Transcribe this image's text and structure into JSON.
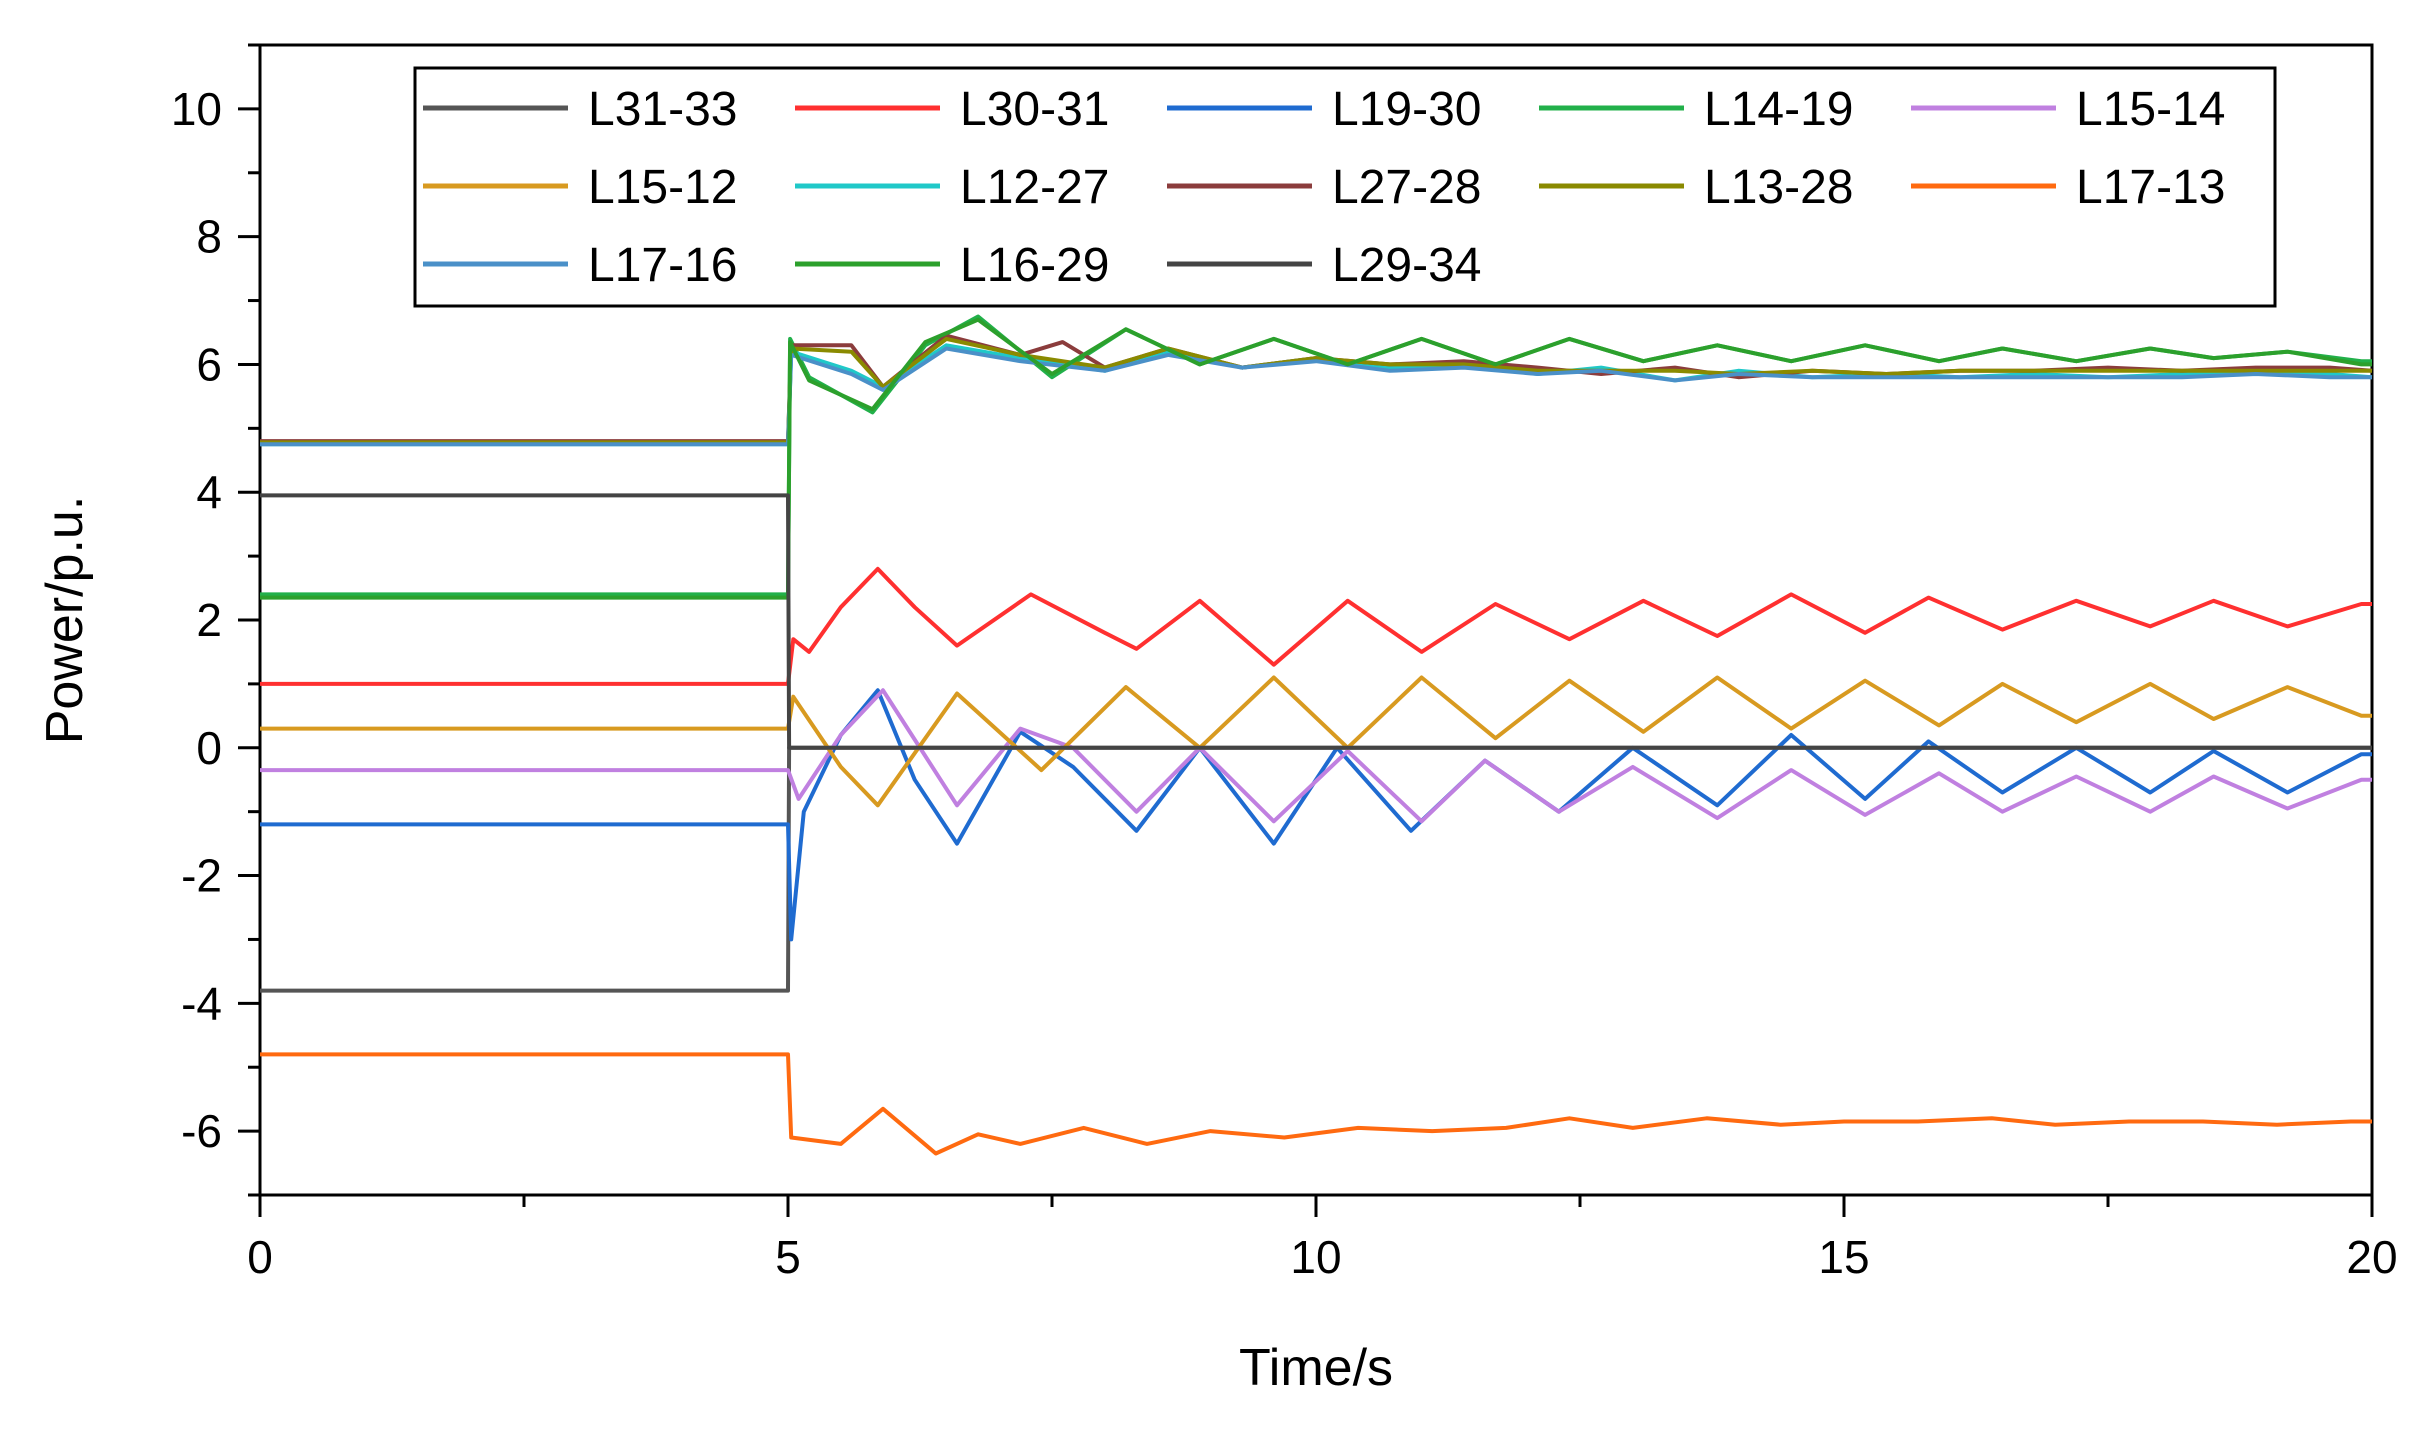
{
  "chart_data": {
    "type": "line",
    "title": "",
    "xlabel": "Time/s",
    "ylabel": "Power/p.u.",
    "xlim": [
      0,
      20
    ],
    "ylim": [
      -7,
      11
    ],
    "xticks": [
      0,
      5,
      10,
      15,
      20
    ],
    "xtick_labels": [
      "0",
      "5",
      "10",
      "15",
      "20"
    ],
    "yticks": [
      -6,
      -4,
      -2,
      0,
      2,
      4,
      6,
      8,
      10
    ],
    "ytick_labels": [
      "-6",
      "-4",
      "-2",
      "0",
      "2",
      "4",
      "6",
      "8",
      "10"
    ],
    "grid": false,
    "legend_position": "top-right",
    "disturbance_time": 5,
    "series": [
      {
        "name": "L31-33",
        "color": "#555555",
        "initial": -3.8,
        "points": [
          [
            5,
            -3.8
          ],
          [
            5.01,
            0
          ],
          [
            20,
            0
          ]
        ]
      },
      {
        "name": "L30-31",
        "color": "#ff3030",
        "initial": 1.0,
        "points": [
          [
            5,
            1.0
          ],
          [
            5.05,
            1.7
          ],
          [
            5.2,
            1.5
          ],
          [
            5.5,
            2.2
          ],
          [
            5.85,
            2.8
          ],
          [
            6.2,
            2.2
          ],
          [
            6.6,
            1.6
          ],
          [
            7.3,
            2.4
          ],
          [
            8.0,
            1.8
          ],
          [
            8.3,
            1.55
          ],
          [
            8.9,
            2.3
          ],
          [
            9.6,
            1.3
          ],
          [
            10.3,
            2.3
          ],
          [
            11.0,
            1.5
          ],
          [
            11.7,
            2.25
          ],
          [
            12.4,
            1.7
          ],
          [
            13.1,
            2.3
          ],
          [
            13.8,
            1.75
          ],
          [
            14.5,
            2.4
          ],
          [
            15.2,
            1.8
          ],
          [
            15.8,
            2.35
          ],
          [
            16.5,
            1.85
          ],
          [
            17.2,
            2.3
          ],
          [
            17.9,
            1.9
          ],
          [
            18.5,
            2.3
          ],
          [
            19.2,
            1.9
          ],
          [
            19.9,
            2.25
          ],
          [
            20,
            2.25
          ]
        ]
      },
      {
        "name": "L19-30",
        "color": "#1f6bd0",
        "initial": -1.2,
        "points": [
          [
            5,
            -1.2
          ],
          [
            5.03,
            -3.0
          ],
          [
            5.15,
            -1.0
          ],
          [
            5.5,
            0.2
          ],
          [
            5.85,
            0.9
          ],
          [
            6.2,
            -0.5
          ],
          [
            6.6,
            -1.5
          ],
          [
            7.2,
            0.25
          ],
          [
            7.7,
            -0.3
          ],
          [
            8.3,
            -1.3
          ],
          [
            8.9,
            0.0
          ],
          [
            9.6,
            -1.5
          ],
          [
            10.2,
            0.0
          ],
          [
            10.9,
            -1.3
          ],
          [
            11.6,
            -0.2
          ],
          [
            12.3,
            -1.0
          ],
          [
            13.0,
            0.0
          ],
          [
            13.8,
            -0.9
          ],
          [
            14.5,
            0.2
          ],
          [
            15.2,
            -0.8
          ],
          [
            15.8,
            0.1
          ],
          [
            16.5,
            -0.7
          ],
          [
            17.2,
            0.0
          ],
          [
            17.9,
            -0.7
          ],
          [
            18.5,
            -0.05
          ],
          [
            19.2,
            -0.7
          ],
          [
            19.9,
            -0.1
          ],
          [
            20,
            -0.1
          ]
        ]
      },
      {
        "name": "L14-19",
        "color": "#22b04a",
        "initial": 2.4,
        "points": [
          [
            5,
            2.4
          ],
          [
            5.02,
            6.4
          ],
          [
            5.2,
            5.8
          ],
          [
            5.8,
            5.25
          ],
          [
            6.3,
            6.3
          ],
          [
            6.8,
            6.75
          ],
          [
            7.5,
            5.8
          ],
          [
            8.2,
            6.55
          ],
          [
            8.9,
            6.0
          ],
          [
            9.6,
            6.4
          ],
          [
            10.3,
            6.0
          ],
          [
            11.0,
            6.4
          ],
          [
            11.7,
            6.0
          ],
          [
            12.4,
            6.4
          ],
          [
            13.1,
            6.05
          ],
          [
            13.8,
            6.3
          ],
          [
            14.5,
            6.05
          ],
          [
            15.2,
            6.3
          ],
          [
            15.9,
            6.05
          ],
          [
            16.5,
            6.25
          ],
          [
            17.2,
            6.05
          ],
          [
            17.9,
            6.25
          ],
          [
            18.5,
            6.1
          ],
          [
            19.2,
            6.2
          ],
          [
            19.9,
            6.05
          ],
          [
            20,
            6.05
          ]
        ]
      },
      {
        "name": "L15-14",
        "color": "#c080e0",
        "initial": -0.35,
        "points": [
          [
            5,
            -0.35
          ],
          [
            5.1,
            -0.8
          ],
          [
            5.5,
            0.2
          ],
          [
            5.9,
            0.9
          ],
          [
            6.6,
            -0.9
          ],
          [
            7.2,
            0.3
          ],
          [
            7.7,
            0.0
          ],
          [
            8.3,
            -1.0
          ],
          [
            8.9,
            0.0
          ],
          [
            9.6,
            -1.15
          ],
          [
            10.3,
            -0.05
          ],
          [
            11.0,
            -1.15
          ],
          [
            11.6,
            -0.2
          ],
          [
            12.3,
            -1.0
          ],
          [
            13.0,
            -0.3
          ],
          [
            13.8,
            -1.1
          ],
          [
            14.5,
            -0.35
          ],
          [
            15.2,
            -1.05
          ],
          [
            15.9,
            -0.4
          ],
          [
            16.5,
            -1.0
          ],
          [
            17.2,
            -0.45
          ],
          [
            17.9,
            -1.0
          ],
          [
            18.5,
            -0.45
          ],
          [
            19.2,
            -0.95
          ],
          [
            19.9,
            -0.5
          ],
          [
            20,
            -0.5
          ]
        ]
      },
      {
        "name": "L15-12",
        "color": "#d89a20",
        "initial": 0.3,
        "points": [
          [
            5,
            0.3
          ],
          [
            5.05,
            0.8
          ],
          [
            5.5,
            -0.3
          ],
          [
            5.85,
            -0.9
          ],
          [
            6.6,
            0.85
          ],
          [
            7.4,
            -0.35
          ],
          [
            8.2,
            0.95
          ],
          [
            8.9,
            0.0
          ],
          [
            9.6,
            1.1
          ],
          [
            10.3,
            0.0
          ],
          [
            11.0,
            1.1
          ],
          [
            11.7,
            0.15
          ],
          [
            12.4,
            1.05
          ],
          [
            13.1,
            0.25
          ],
          [
            13.8,
            1.1
          ],
          [
            14.5,
            0.3
          ],
          [
            15.2,
            1.05
          ],
          [
            15.9,
            0.35
          ],
          [
            16.5,
            1.0
          ],
          [
            17.2,
            0.4
          ],
          [
            17.9,
            1.0
          ],
          [
            18.5,
            0.45
          ],
          [
            19.2,
            0.95
          ],
          [
            19.9,
            0.5
          ],
          [
            20,
            0.5
          ]
        ]
      },
      {
        "name": "L12-27",
        "color": "#20c8c8",
        "initial": 4.75,
        "points": [
          [
            5,
            4.75
          ],
          [
            5.03,
            6.2
          ],
          [
            5.6,
            5.9
          ],
          [
            5.9,
            5.65
          ],
          [
            6.5,
            6.3
          ],
          [
            7.2,
            6.1
          ],
          [
            8.0,
            5.9
          ],
          [
            8.6,
            6.2
          ],
          [
            9.3,
            5.95
          ],
          [
            10.0,
            6.1
          ],
          [
            10.7,
            5.95
          ],
          [
            11.4,
            6.0
          ],
          [
            12.1,
            5.85
          ],
          [
            12.7,
            5.95
          ],
          [
            13.4,
            5.75
          ],
          [
            14.0,
            5.9
          ],
          [
            14.7,
            5.8
          ],
          [
            15.4,
            5.85
          ],
          [
            16.1,
            5.8
          ],
          [
            16.8,
            5.85
          ],
          [
            17.5,
            5.8
          ],
          [
            18.2,
            5.85
          ],
          [
            18.9,
            5.85
          ],
          [
            19.6,
            5.85
          ],
          [
            20,
            5.8
          ]
        ]
      },
      {
        "name": "L27-28",
        "color": "#8b3c3c",
        "initial": 4.8,
        "points": [
          [
            5,
            4.8
          ],
          [
            5.03,
            6.3
          ],
          [
            5.6,
            6.3
          ],
          [
            5.9,
            5.65
          ],
          [
            6.5,
            6.45
          ],
          [
            7.2,
            6.15
          ],
          [
            7.6,
            6.35
          ],
          [
            8.0,
            5.95
          ],
          [
            8.6,
            6.25
          ],
          [
            9.3,
            5.95
          ],
          [
            10.0,
            6.1
          ],
          [
            10.7,
            6.0
          ],
          [
            11.4,
            6.05
          ],
          [
            12.1,
            5.95
          ],
          [
            12.7,
            5.85
          ],
          [
            13.4,
            5.95
          ],
          [
            14.0,
            5.8
          ],
          [
            14.7,
            5.9
          ],
          [
            15.4,
            5.85
          ],
          [
            16.1,
            5.9
          ],
          [
            16.8,
            5.9
          ],
          [
            17.5,
            5.95
          ],
          [
            18.2,
            5.9
          ],
          [
            18.9,
            5.95
          ],
          [
            19.6,
            5.95
          ],
          [
            20,
            5.9
          ]
        ]
      },
      {
        "name": "L13-28",
        "color": "#8a8a00",
        "initial": 4.78,
        "points": [
          [
            5,
            4.78
          ],
          [
            5.03,
            6.25
          ],
          [
            5.6,
            6.2
          ],
          [
            5.9,
            5.65
          ],
          [
            6.5,
            6.4
          ],
          [
            7.2,
            6.15
          ],
          [
            8.0,
            5.95
          ],
          [
            8.6,
            6.25
          ],
          [
            9.3,
            5.95
          ],
          [
            10.0,
            6.1
          ],
          [
            10.7,
            6.0
          ],
          [
            11.4,
            6.0
          ],
          [
            12.1,
            5.9
          ],
          [
            12.7,
            5.9
          ],
          [
            13.4,
            5.9
          ],
          [
            14.0,
            5.85
          ],
          [
            14.7,
            5.9
          ],
          [
            15.4,
            5.85
          ],
          [
            16.1,
            5.9
          ],
          [
            16.8,
            5.9
          ],
          [
            17.5,
            5.9
          ],
          [
            18.2,
            5.9
          ],
          [
            18.9,
            5.9
          ],
          [
            19.6,
            5.9
          ],
          [
            20,
            5.9
          ]
        ]
      },
      {
        "name": "L17-13",
        "color": "#ff6a10",
        "initial": -4.8,
        "points": [
          [
            5,
            -4.8
          ],
          [
            5.03,
            -6.1
          ],
          [
            5.5,
            -6.2
          ],
          [
            5.9,
            -5.65
          ],
          [
            6.4,
            -6.35
          ],
          [
            6.8,
            -6.05
          ],
          [
            7.2,
            -6.2
          ],
          [
            7.8,
            -5.95
          ],
          [
            8.4,
            -6.2
          ],
          [
            9.0,
            -6.0
          ],
          [
            9.7,
            -6.1
          ],
          [
            10.4,
            -5.95
          ],
          [
            11.1,
            -6.0
          ],
          [
            11.8,
            -5.95
          ],
          [
            12.4,
            -5.8
          ],
          [
            13.0,
            -5.95
          ],
          [
            13.7,
            -5.8
          ],
          [
            14.4,
            -5.9
          ],
          [
            15.0,
            -5.85
          ],
          [
            15.7,
            -5.85
          ],
          [
            16.4,
            -5.8
          ],
          [
            17.0,
            -5.9
          ],
          [
            17.7,
            -5.85
          ],
          [
            18.4,
            -5.85
          ],
          [
            19.1,
            -5.9
          ],
          [
            19.8,
            -5.85
          ],
          [
            20,
            -5.85
          ]
        ]
      },
      {
        "name": "L17-16",
        "color": "#4a90c8",
        "initial": 4.75,
        "points": [
          [
            5,
            4.75
          ],
          [
            5.03,
            6.15
          ],
          [
            5.6,
            5.85
          ],
          [
            5.9,
            5.6
          ],
          [
            6.5,
            6.25
          ],
          [
            7.2,
            6.05
          ],
          [
            8.0,
            5.9
          ],
          [
            8.6,
            6.15
          ],
          [
            9.3,
            5.95
          ],
          [
            10.0,
            6.05
          ],
          [
            10.7,
            5.9
          ],
          [
            11.4,
            5.95
          ],
          [
            12.1,
            5.85
          ],
          [
            12.7,
            5.9
          ],
          [
            13.4,
            5.75
          ],
          [
            14.0,
            5.85
          ],
          [
            14.7,
            5.8
          ],
          [
            15.4,
            5.8
          ],
          [
            16.1,
            5.8
          ],
          [
            16.8,
            5.8
          ],
          [
            17.5,
            5.8
          ],
          [
            18.2,
            5.8
          ],
          [
            18.9,
            5.85
          ],
          [
            19.6,
            5.8
          ],
          [
            20,
            5.8
          ]
        ]
      },
      {
        "name": "L16-29",
        "color": "#2ca02c",
        "initial": 2.35,
        "points": [
          [
            5,
            2.35
          ],
          [
            5.02,
            6.35
          ],
          [
            5.2,
            5.75
          ],
          [
            5.8,
            5.3
          ],
          [
            6.3,
            6.35
          ],
          [
            6.8,
            6.7
          ],
          [
            7.5,
            5.85
          ],
          [
            8.2,
            6.55
          ],
          [
            8.9,
            6.0
          ],
          [
            9.6,
            6.4
          ],
          [
            10.3,
            6.0
          ],
          [
            11.0,
            6.4
          ],
          [
            11.7,
            6.0
          ],
          [
            12.4,
            6.4
          ],
          [
            13.1,
            6.05
          ],
          [
            13.8,
            6.3
          ],
          [
            14.5,
            6.05
          ],
          [
            15.2,
            6.3
          ],
          [
            15.9,
            6.05
          ],
          [
            16.5,
            6.25
          ],
          [
            17.2,
            6.05
          ],
          [
            17.9,
            6.25
          ],
          [
            18.5,
            6.1
          ],
          [
            19.2,
            6.2
          ],
          [
            19.9,
            6.0
          ],
          [
            20,
            6.0
          ]
        ]
      },
      {
        "name": "L29-34",
        "color": "#444444",
        "initial": 3.95,
        "points": [
          [
            5,
            3.95
          ],
          [
            5.01,
            0
          ],
          [
            20,
            0
          ]
        ]
      }
    ]
  }
}
